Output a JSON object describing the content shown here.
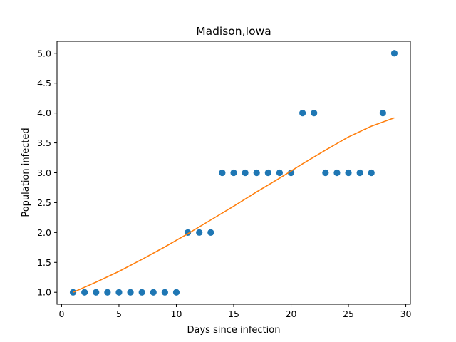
{
  "chart_data": {
    "type": "scatter",
    "title": "Madison,Iowa",
    "xlabel": "Days since infection",
    "ylabel": "Population infected",
    "xlim": [
      -0.4,
      30.4
    ],
    "ylim": [
      0.8,
      5.2
    ],
    "xticks": [
      0,
      5,
      10,
      15,
      20,
      25,
      30
    ],
    "xtick_labels": [
      "0",
      "5",
      "10",
      "15",
      "20",
      "25",
      "30"
    ],
    "yticks": [
      1.0,
      1.5,
      2.0,
      2.5,
      3.0,
      3.5,
      4.0,
      4.5,
      5.0
    ],
    "ytick_labels": [
      "1.0",
      "1.5",
      "2.0",
      "2.5",
      "3.0",
      "3.5",
      "4.0",
      "4.5",
      "5.0"
    ],
    "grid": false,
    "series": [
      {
        "kind": "points",
        "color": "#1f77b4",
        "x": [
          1,
          2,
          3,
          4,
          5,
          6,
          7,
          8,
          9,
          10,
          11,
          12,
          13,
          14,
          15,
          16,
          17,
          18,
          19,
          20,
          21,
          22,
          23,
          24,
          25,
          26,
          27,
          28,
          29
        ],
        "y": [
          1,
          1,
          1,
          1,
          1,
          1,
          1,
          1,
          1,
          1,
          2,
          2,
          2,
          3,
          3,
          3,
          3,
          3,
          3,
          3,
          4,
          4,
          3,
          3,
          3,
          3,
          3,
          4,
          5
        ]
      },
      {
        "kind": "fit-line",
        "color": "#ff7f0e",
        "x": [
          1,
          3,
          5,
          7,
          9,
          11,
          13,
          15,
          17,
          19,
          21,
          23,
          25,
          27,
          29
        ],
        "y": [
          1.0,
          1.17,
          1.35,
          1.55,
          1.76,
          1.98,
          2.21,
          2.44,
          2.68,
          2.91,
          3.15,
          3.38,
          3.6,
          3.78,
          3.92
        ]
      }
    ]
  }
}
